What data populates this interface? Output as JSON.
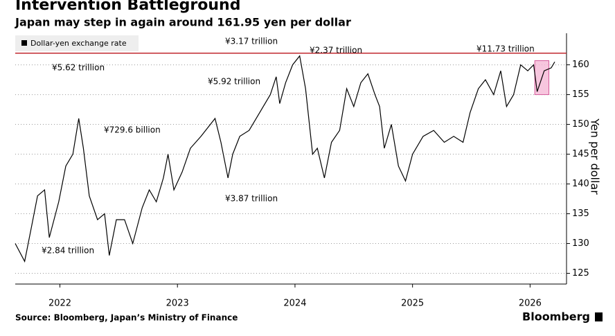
{
  "chart_data": {
    "type": "line",
    "title": "Intervention Battleground",
    "subtitle": "Japan may step in again around 161.95 yen per dollar",
    "y_label": "Yen per dollar",
    "source": "Source: Bloomberg, Japan’s Ministry of Finance",
    "brand": "Bloomberg",
    "legend_position": "top-left",
    "grid": true,
    "series": [
      {
        "name": "Dollar-yen exchange rate",
        "color": "#000000",
        "x": [
          2021.62,
          2021.7,
          2021.76,
          2021.81,
          2021.87,
          2021.91,
          2021.99,
          2022.05,
          2022.11,
          2022.16,
          2022.2,
          2022.25,
          2022.32,
          2022.38,
          2022.42,
          2022.48,
          2022.55,
          2022.62,
          2022.7,
          2022.76,
          2022.82,
          2022.88,
          2022.92,
          2022.97,
          2023.04,
          2023.11,
          2023.2,
          2023.32,
          2023.37,
          2023.43,
          2023.47,
          2023.53,
          2023.61,
          2023.7,
          2023.79,
          2023.84,
          2023.87,
          2023.92,
          2023.98,
          2024.04,
          2024.09,
          2024.15,
          2024.19,
          2024.25,
          2024.31,
          2024.38,
          2024.44,
          2024.5,
          2024.56,
          2024.62,
          2024.68,
          2024.72,
          2024.76,
          2024.82,
          2024.88,
          2024.94,
          2025.0,
          2025.09,
          2025.18,
          2025.27,
          2025.35,
          2025.43,
          2025.49,
          2025.56,
          2025.62,
          2025.69,
          2025.75,
          2025.8,
          2025.86,
          2025.92,
          2025.98,
          2026.03,
          2026.06,
          2026.12,
          2026.18,
          2026.21
        ],
        "values": [
          130,
          127,
          133,
          138,
          139,
          131,
          137,
          143,
          145,
          151,
          146,
          138,
          134,
          135,
          128,
          134,
          134,
          130,
          136,
          139,
          137,
          141,
          145,
          139,
          142,
          146,
          148,
          151,
          147,
          141,
          145,
          148,
          149,
          152,
          155,
          158,
          153.5,
          157,
          160,
          161.5,
          156,
          145,
          146,
          141,
          147,
          149,
          156,
          153,
          157,
          158.5,
          155,
          153,
          146,
          150,
          143,
          140.5,
          145,
          148,
          149,
          147,
          148,
          147,
          152,
          156,
          157.5,
          155,
          159,
          153,
          155,
          160,
          159,
          160,
          155.5,
          159,
          159.5,
          160.5
        ]
      }
    ],
    "intervention_level": 161.95,
    "intervention_color": "#c0272d",
    "highlight": {
      "x": [
        2026.04,
        2026.16
      ],
      "y": [
        155,
        160.7
      ],
      "color": "#f5b8d6"
    },
    "annotations": [
      "¥5.62 trillion",
      "¥729.6 billion",
      "¥2.84 trillion",
      "¥3.17 trillion",
      "¥5.92 trillion",
      "¥3.87 trillion",
      "¥2.37 trillion",
      "¥11.73 trillion"
    ],
    "xlim": [
      2021.62,
      2026.31
    ],
    "xticks": [
      2022,
      2023,
      2024,
      2025,
      2026
    ],
    "ylim": [
      123.2,
      165.3
    ],
    "yticks": [
      125,
      130,
      135,
      140,
      145,
      150,
      155,
      160
    ]
  }
}
